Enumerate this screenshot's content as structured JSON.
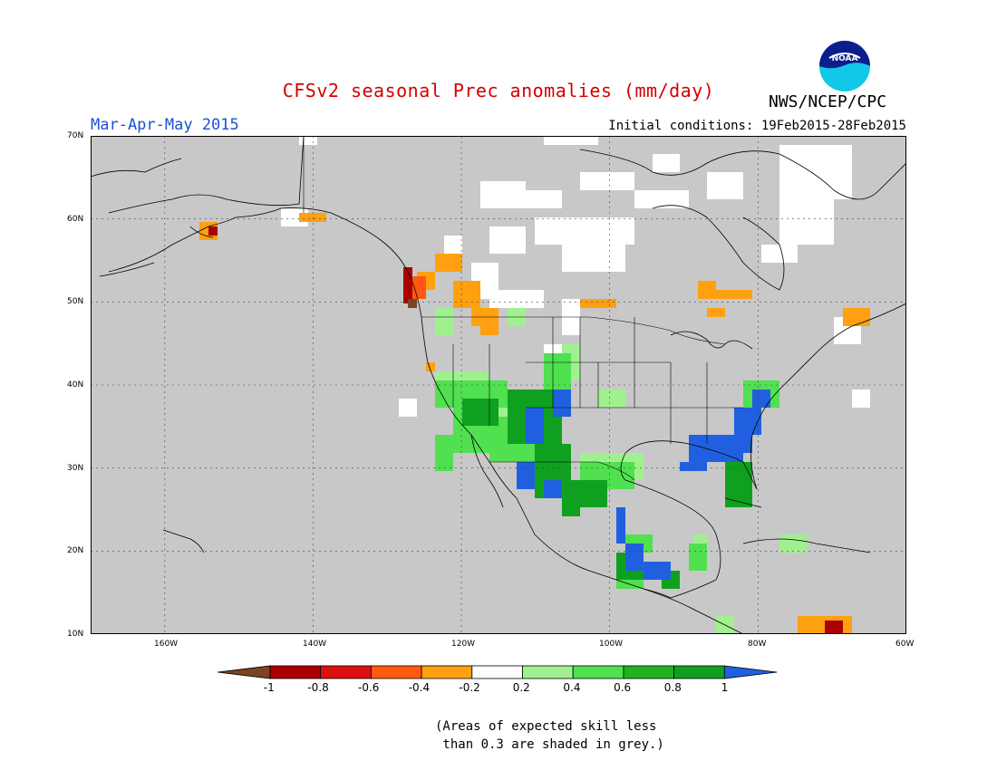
{
  "header": {
    "title": "CFSv2 seasonal Prec anomalies (mm/day)",
    "org": "NWS/NCEP/CPC",
    "season": "Mar-Apr-May 2015",
    "initial_conditions": "Initial conditions: 19Feb2015-28Feb2015"
  },
  "logo": {
    "text": "NOAA",
    "icon": "noaa-logo-icon"
  },
  "map": {
    "lat_labels": [
      "70N",
      "60N",
      "50N",
      "40N",
      "30N",
      "20N",
      "10N"
    ],
    "lon_labels": [
      "160W",
      "140W",
      "120W",
      "100W",
      "80W",
      "60W"
    ],
    "grid": true,
    "background_color": "#c8c8c8",
    "lat_range": [
      10,
      70
    ],
    "lon_range": [
      -170,
      -60
    ]
  },
  "legend": {
    "labels": [
      "-1",
      "-0.8",
      "-0.6",
      "-0.4",
      "-0.2",
      "0.2",
      "0.4",
      "0.6",
      "0.8",
      "1"
    ],
    "colors": [
      "#7a4420",
      "#aa0000",
      "#dd1010",
      "#ff5a10",
      "#ffa010",
      "#ffffff",
      "#a0f090",
      "#50e050",
      "#20b020",
      "#10a020",
      "#2060e0"
    ]
  },
  "note": {
    "line1": "(Areas of expected skill less",
    "line2": " than 0.3 are shaded in grey.)"
  }
}
